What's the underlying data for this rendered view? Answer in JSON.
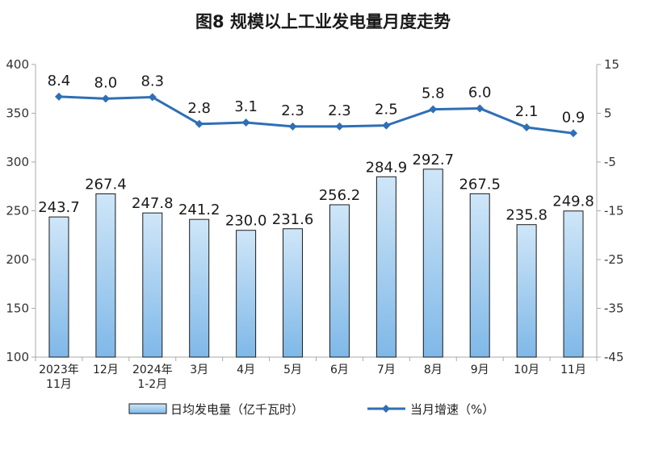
{
  "chart_data": {
    "type": "bar",
    "title": "图8  规模以上工业发电量月度走势",
    "categories": [
      [
        "2023年",
        "11月"
      ],
      [
        "12月"
      ],
      [
        "2024年",
        "1-2月"
      ],
      [
        "3月"
      ],
      [
        "4月"
      ],
      [
        "5月"
      ],
      [
        "6月"
      ],
      [
        "7月"
      ],
      [
        "8月"
      ],
      [
        "9月"
      ],
      [
        "10月"
      ],
      [
        "11月"
      ]
    ],
    "series": [
      {
        "name": "日均发电量（亿千瓦时）",
        "type": "bar",
        "axis": "left",
        "values": [
          243.7,
          267.4,
          247.8,
          241.2,
          230.0,
          231.6,
          256.2,
          284.9,
          292.7,
          267.5,
          235.8,
          249.8
        ],
        "labels": [
          "243.7",
          "267.4",
          "247.8",
          "241.2",
          "230.0",
          "231.6",
          "256.2",
          "284.9",
          "292.7",
          "267.5",
          "235.8",
          "249.8"
        ]
      },
      {
        "name": "当月增速（%）",
        "type": "line",
        "axis": "right",
        "values": [
          8.4,
          8.0,
          8.3,
          2.8,
          3.1,
          2.3,
          2.3,
          2.5,
          5.8,
          6.0,
          2.1,
          0.9
        ],
        "labels": [
          "8.4",
          "8.0",
          "8.3",
          "2.8",
          "3.1",
          "2.3",
          "2.3",
          "2.5",
          "5.8",
          "6.0",
          "2.1",
          "0.9"
        ]
      }
    ],
    "y_left": {
      "ylim": [
        100,
        400
      ],
      "ticks": [
        "100",
        "150",
        "200",
        "250",
        "300",
        "350",
        "400"
      ]
    },
    "y_right": {
      "ylim": [
        -45,
        15
      ],
      "ticks": [
        "-45",
        "-35",
        "-25",
        "-15",
        "-5",
        "5",
        "15"
      ]
    },
    "grid": false,
    "legend_position": "bottom",
    "colors": {
      "bar_fill_top": "#cfe6f8",
      "bar_fill_bottom": "#7fb8e8",
      "bar_stroke": "#1a1a1a",
      "line": "#2f6fb5",
      "axis": "#aaaaaa"
    }
  }
}
